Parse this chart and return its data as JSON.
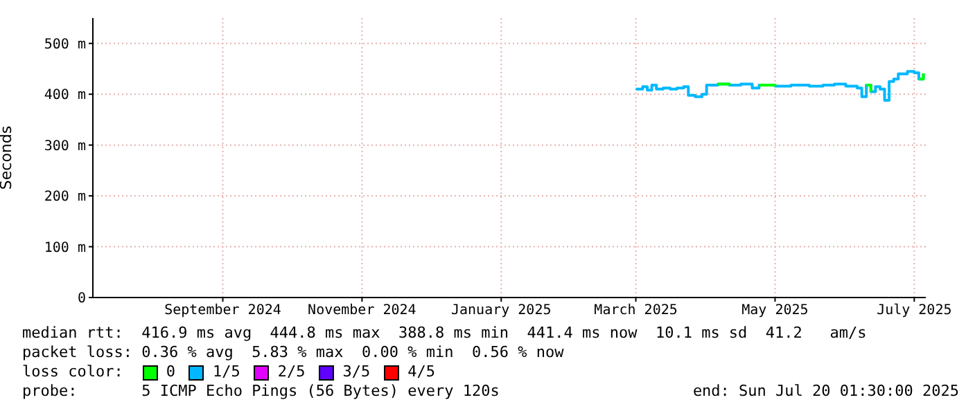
{
  "chart_data": {
    "type": "step",
    "ylabel": "Seconds",
    "xlim": [
      "2024-07-20T01:30",
      "2025-07-20T01:30"
    ],
    "xticks": [
      {
        "value": "2024-09-15",
        "label": "September 2024"
      },
      {
        "value": "2024-11-15",
        "label": "November 2024"
      },
      {
        "value": "2025-01-15",
        "label": "January 2025"
      },
      {
        "value": "2025-03-15",
        "label": "March 2025"
      },
      {
        "value": "2025-05-15",
        "label": "May 2025"
      },
      {
        "value": "2025-07-15",
        "label": "July 2025"
      }
    ],
    "ylim": [
      0,
      550
    ],
    "yticks": [
      0,
      {
        "value": 100,
        "label": "100 m"
      },
      {
        "value": 200,
        "label": "200 m"
      },
      {
        "value": 300,
        "label": "300 m"
      },
      {
        "value": 400,
        "label": "400 m"
      },
      {
        "value": 500,
        "label": "500 m"
      }
    ],
    "grid": true,
    "legend": "bottom",
    "legend_title": "loss color:",
    "x": [
      "2025-03-15",
      "2025-03-18",
      "2025-03-20",
      "2025-03-22",
      "2025-03-24",
      "2025-03-27",
      "2025-03-30",
      "2025-04-02",
      "2025-04-05",
      "2025-04-07",
      "2025-04-10",
      "2025-04-13",
      "2025-04-15",
      "2025-04-20",
      "2025-04-25",
      "2025-04-30",
      "2025-05-05",
      "2025-05-08",
      "2025-05-15",
      "2025-05-22",
      "2025-05-30",
      "2025-06-05",
      "2025-06-10",
      "2025-06-15",
      "2025-06-20",
      "2025-06-22",
      "2025-06-24",
      "2025-06-26",
      "2025-06-28",
      "2025-06-30",
      "2025-07-02",
      "2025-07-04",
      "2025-07-06",
      "2025-07-08",
      "2025-07-12",
      "2025-07-15",
      "2025-07-17",
      "2025-07-19"
    ],
    "series": [
      {
        "name": "0",
        "color": "#00ff00",
        "values": [
          null,
          null,
          null,
          null,
          null,
          null,
          null,
          null,
          null,
          null,
          null,
          null,
          null,
          420,
          418,
          null,
          null,
          418,
          416,
          null,
          null,
          null,
          null,
          null,
          null,
          null,
          418,
          405,
          null,
          null,
          null,
          null,
          null,
          null,
          null,
          null,
          430,
          441
        ]
      },
      {
        "name": "1/5",
        "color": "#00b8ff",
        "values": [
          410,
          415,
          408,
          418,
          410,
          412,
          410,
          412,
          415,
          398,
          395,
          400,
          418,
          420,
          418,
          420,
          412,
          418,
          416,
          418,
          416,
          418,
          420,
          416,
          412,
          395,
          418,
          405,
          415,
          410,
          388,
          425,
          430,
          440,
          445,
          442,
          430,
          441
        ]
      },
      {
        "name": "2/5",
        "color": "#e000ff",
        "values": [
          null,
          null,
          null,
          null,
          null,
          null,
          null,
          null,
          null,
          null,
          null,
          null,
          null,
          null,
          null,
          null,
          null,
          null,
          null,
          null,
          null,
          null,
          null,
          null,
          null,
          null,
          null,
          null,
          null,
          null,
          null,
          null,
          null,
          null,
          null,
          null,
          null,
          null
        ]
      },
      {
        "name": "3/5",
        "color": "#6000ff",
        "values": [
          null,
          null,
          null,
          null,
          null,
          null,
          null,
          null,
          null,
          null,
          null,
          null,
          null,
          null,
          null,
          null,
          null,
          null,
          null,
          null,
          null,
          null,
          null,
          null,
          null,
          null,
          null,
          null,
          null,
          null,
          null,
          null,
          null,
          null,
          null,
          null,
          null,
          null
        ]
      },
      {
        "name": "4/5",
        "color": "#ff0000",
        "values": [
          null,
          null,
          null,
          null,
          null,
          null,
          null,
          null,
          null,
          null,
          null,
          null,
          null,
          null,
          null,
          null,
          null,
          null,
          null,
          null,
          null,
          null,
          null,
          null,
          null,
          null,
          null,
          null,
          null,
          null,
          null,
          null,
          null,
          null,
          null,
          null,
          null,
          null
        ]
      }
    ],
    "annotations": [
      "median rtt:  416.9 ms avg  444.8 ms max  388.8 ms min  441.4 ms now  10.1 ms sd  41.2   am/s",
      "packet loss: 0.36 % avg  5.83 % max  0.00 % min  0.56 % now",
      "probe:       5 ICMP Echo Pings (56 Bytes) every 120s",
      "end: Sun Jul 20 01:30:00 2025"
    ]
  }
}
